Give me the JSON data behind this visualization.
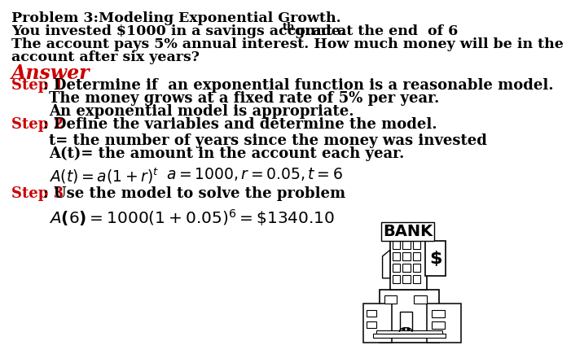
{
  "bg_color": "#ffffff",
  "title_line": "Problem 3:Modeling Exponential Growth.",
  "intro_line1a": "You invested $1000 in a savings account at the end  of 6",
  "intro_line1_super": "th",
  "intro_line1b": " grade.",
  "intro_line2": "The account pays 5% annual interest. How much money will be in the",
  "intro_line3": "account after six years?",
  "answer_label": "Answer",
  "step1_label": "Step 1",
  "step1_text": ": Determine if  an exponential function is a reasonable model.",
  "step1_sub1": "The money grows at a fixed rate of 5% per year.",
  "step1_sub2": "An exponential model is appropriate.",
  "step2_label": "Step 2",
  "step2_text": ": Define the variables and determine the model.",
  "step2_sub1": "t= the number of years since the money was invested",
  "step2_sub2": "A(t)= the amount in the account each year.",
  "step3_label": "Step 3",
  "step3_text": ": Use the model to solve the problem",
  "red_color": "#cc0000",
  "black_color": "#000000",
  "font_size_body": 12.5,
  "font_size_answer": 17,
  "font_size_step_label": 13
}
